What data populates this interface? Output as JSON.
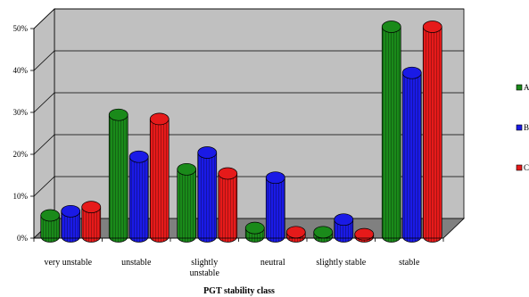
{
  "chart_data": {
    "type": "bar",
    "title": "",
    "xlabel": "PGT stability class",
    "ylabel": "",
    "categories": [
      "very unstable",
      "unstable",
      "slightly unstable",
      "neutral",
      "slightly stable",
      "stable"
    ],
    "series": [
      {
        "name": "A",
        "color": "#1a8a1a",
        "values": [
          5,
          29,
          16,
          2,
          1,
          50
        ]
      },
      {
        "name": "B",
        "color": "#1a1ae6",
        "values": [
          6,
          19,
          20,
          14,
          4,
          39
        ]
      },
      {
        "name": "C",
        "color": "#e61a1a",
        "values": [
          7,
          28,
          15,
          1,
          0.5,
          50
        ]
      }
    ],
    "yticks": [
      "0%",
      "10%",
      "20%",
      "30%",
      "40%",
      "50%"
    ],
    "ylim": [
      0,
      50
    ],
    "grid": true,
    "legend_position": "right",
    "style": "3d-cylinder"
  }
}
